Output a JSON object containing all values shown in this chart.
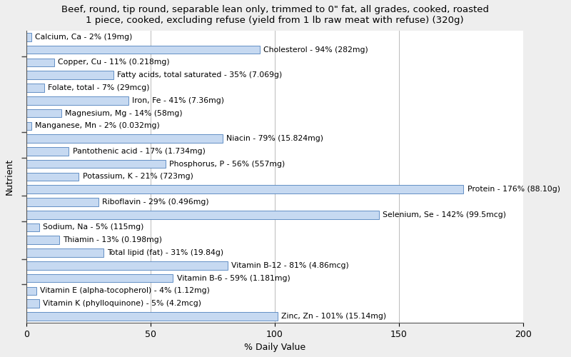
{
  "title": "Beef, round, tip round, separable lean only, trimmed to 0\" fat, all grades, cooked, roasted\n1 piece, cooked, excluding refuse (yield from 1 lb raw meat with refuse) (320g)",
  "xlabel": "% Daily Value",
  "ylabel": "Nutrient",
  "xlim": [
    0,
    200
  ],
  "xticks": [
    0,
    50,
    100,
    150,
    200
  ],
  "nutrients": [
    "Calcium, Ca - 2% (19mg)",
    "Cholesterol - 94% (282mg)",
    "Copper, Cu - 11% (0.218mg)",
    "Fatty acids, total saturated - 35% (7.069g)",
    "Folate, total - 7% (29mcg)",
    "Iron, Fe - 41% (7.36mg)",
    "Magnesium, Mg - 14% (58mg)",
    "Manganese, Mn - 2% (0.032mg)",
    "Niacin - 79% (15.824mg)",
    "Pantothenic acid - 17% (1.734mg)",
    "Phosphorus, P - 56% (557mg)",
    "Potassium, K - 21% (723mg)",
    "Protein - 176% (88.10g)",
    "Riboflavin - 29% (0.496mg)",
    "Selenium, Se - 142% (99.5mcg)",
    "Sodium, Na - 5% (115mg)",
    "Thiamin - 13% (0.198mg)",
    "Total lipid (fat) - 31% (19.84g)",
    "Vitamin B-12 - 81% (4.86mcg)",
    "Vitamin B-6 - 59% (1.181mg)",
    "Vitamin E (alpha-tocopherol) - 4% (1.12mg)",
    "Vitamin K (phylloquinone) - 5% (4.2mcg)",
    "Zinc, Zn - 101% (15.14mg)"
  ],
  "values": [
    2,
    94,
    11,
    35,
    7,
    41,
    14,
    2,
    79,
    17,
    56,
    21,
    176,
    29,
    142,
    5,
    13,
    31,
    81,
    59,
    4,
    5,
    101
  ],
  "bar_color": "#c6d9f1",
  "bar_edge_color": "#4f81bd",
  "background_color": "#eeeeee",
  "plot_background_color": "#ffffff",
  "title_fontsize": 9.5,
  "axis_label_fontsize": 9,
  "tick_fontsize": 9,
  "bar_label_fontsize": 7.8
}
